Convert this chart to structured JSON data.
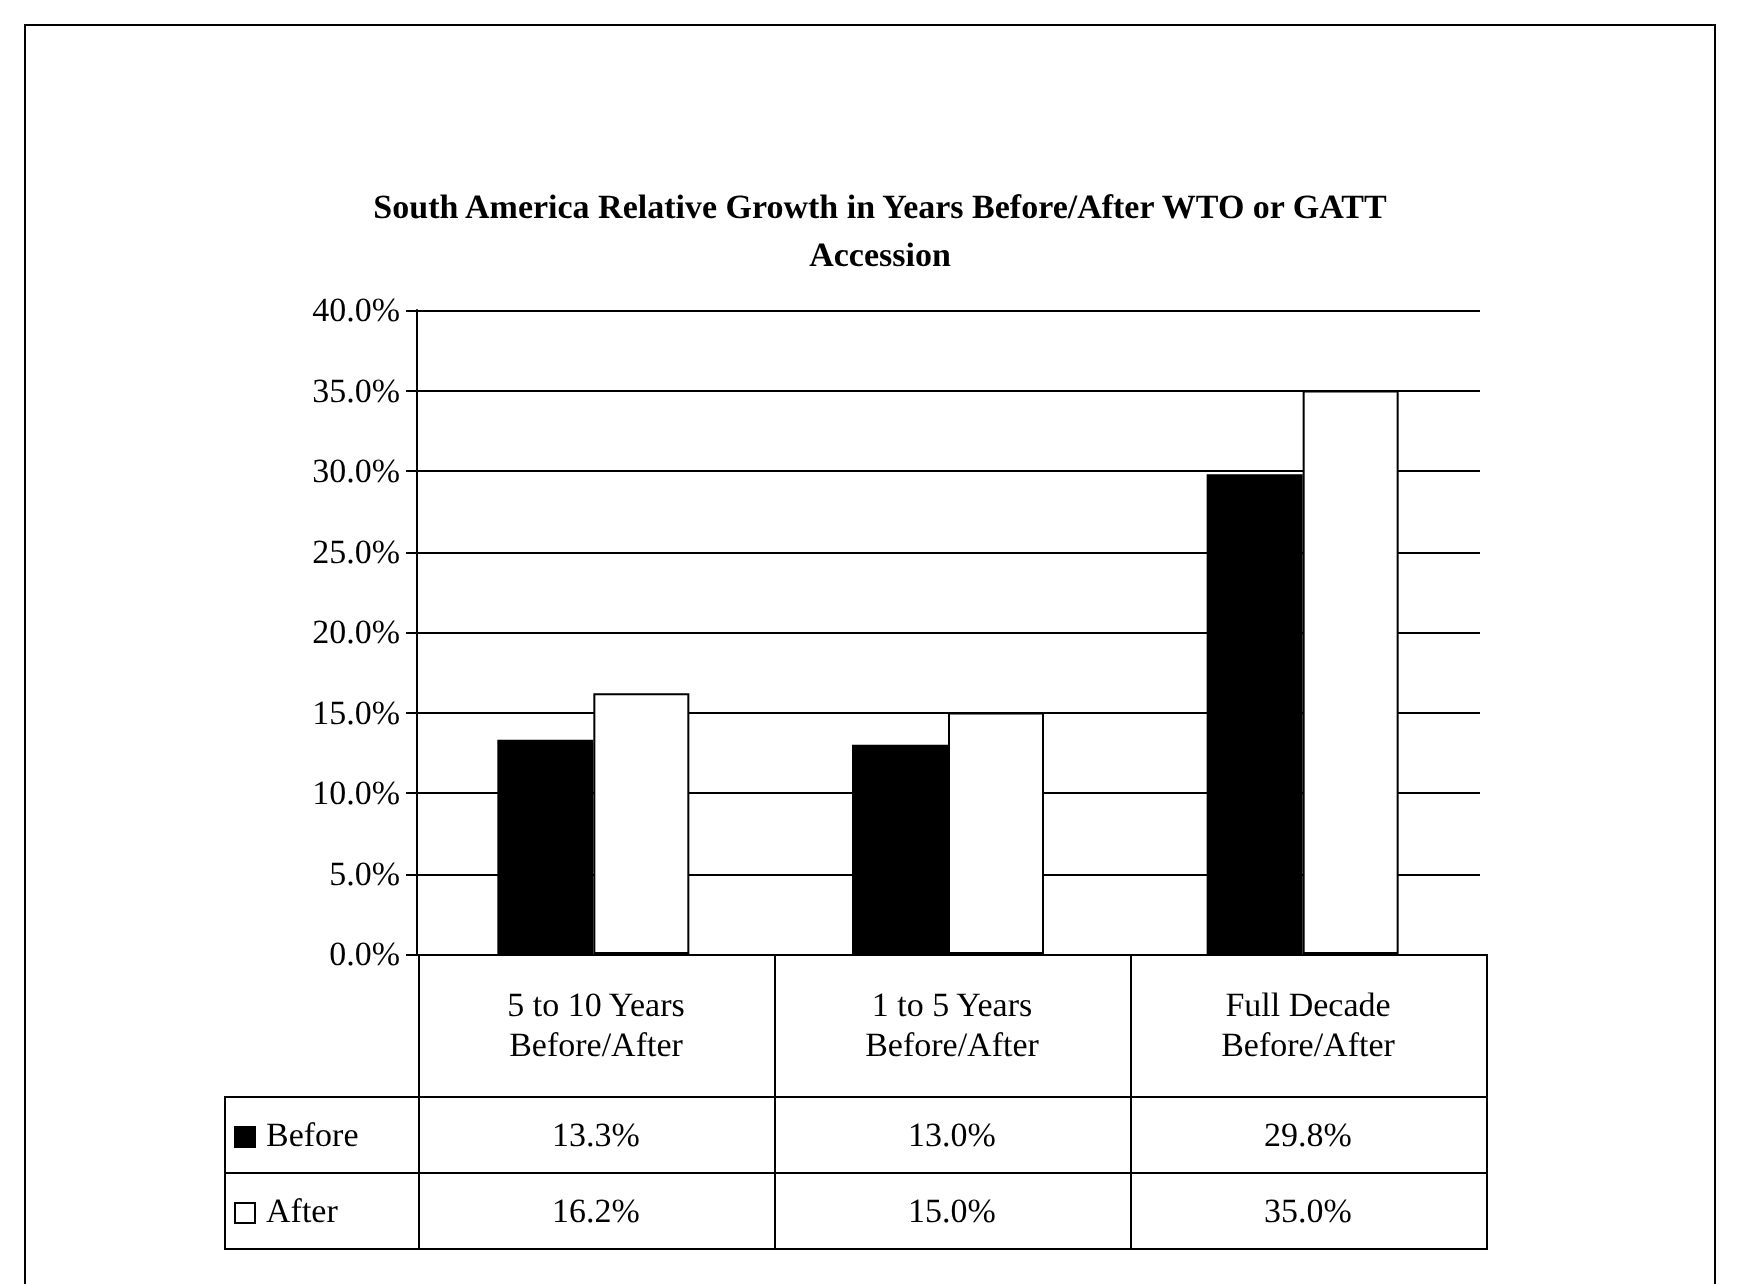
{
  "chart_data": {
    "type": "bar",
    "title": "South America Relative Growth in Years Before/After WTO or GATT Accession",
    "categories": [
      "5 to 10 Years Before/After",
      "1 to 5 Years Before/After",
      "Full Decade Before/After"
    ],
    "series": [
      {
        "name": "Before",
        "color": "#000000",
        "values": [
          13.3,
          13.0,
          29.8
        ],
        "value_labels": [
          "13.3%",
          "13.0%",
          "29.8%"
        ]
      },
      {
        "name": "After",
        "color": "#ffffff",
        "values": [
          16.2,
          15.0,
          35.0
        ],
        "value_labels": [
          "16.2%",
          "15.0%",
          "35.0%"
        ]
      }
    ],
    "ylim": [
      0,
      40
    ],
    "yticks": [
      {
        "value": 0,
        "label": "0.0%"
      },
      {
        "value": 5,
        "label": "5.0%"
      },
      {
        "value": 10,
        "label": "10.0%"
      },
      {
        "value": 15,
        "label": "15.0%"
      },
      {
        "value": 20,
        "label": "20.0%"
      },
      {
        "value": 25,
        "label": "25.0%"
      },
      {
        "value": 30,
        "label": "30.0%"
      },
      {
        "value": 35,
        "label": "35.0%"
      },
      {
        "value": 40,
        "label": "40.0%"
      }
    ],
    "grid": "y",
    "legend": "bottom"
  }
}
